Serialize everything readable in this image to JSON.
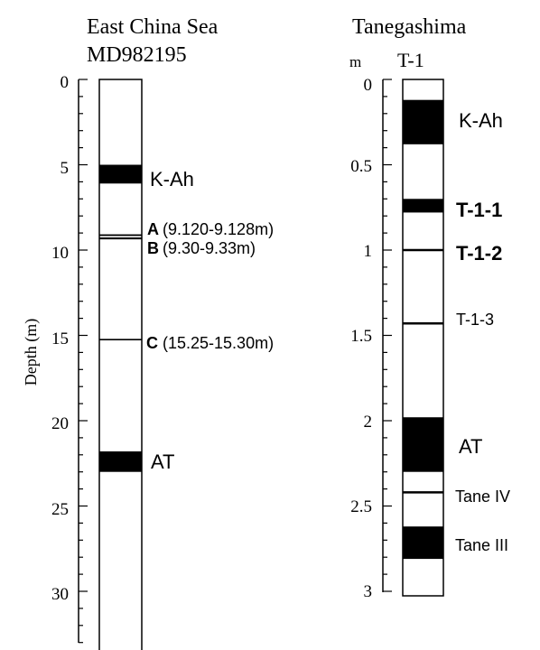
{
  "left_core": {
    "title_line1": "East China Sea",
    "title_line2": "MD982195",
    "y_axis_label": "Depth (m)",
    "ticks": [
      "0",
      "5",
      "10",
      "15",
      "20",
      "25",
      "30"
    ],
    "depth_range": [
      0,
      33
    ],
    "layers": [
      {
        "name": "K-Ah",
        "top": 5.0,
        "bottom": 6.1
      },
      {
        "name": "AT",
        "top": 21.8,
        "bottom": 23.0
      }
    ],
    "thin_lines": [
      9.12,
      9.128,
      9.3,
      9.33,
      15.25
    ],
    "labels": [
      {
        "text": "K-Ah",
        "bold": false,
        "depth": 5.7
      },
      {
        "letter": "A",
        "text": "(9.120-9.128m)",
        "depth": 8.9
      },
      {
        "letter": "B",
        "text": "(9.30-9.33m)",
        "depth": 9.75
      },
      {
        "letter": "C",
        "text": "(15.25-15.30m)",
        "depth": 15.35
      },
      {
        "text": "AT",
        "bold": false,
        "depth": 22.4
      }
    ]
  },
  "right_core": {
    "title": "Tanegashima",
    "core_name": "T-1",
    "unit": "m",
    "ticks": [
      "0",
      "0.5",
      "1",
      "1.5",
      "2",
      "2.5",
      "3"
    ],
    "depth_range": [
      0,
      3
    ],
    "layers": [
      {
        "name": "K-Ah",
        "top": 0.12,
        "bottom": 0.38
      },
      {
        "name": "T-1-1",
        "top": 0.7,
        "bottom": 0.78
      },
      {
        "name": "AT",
        "top": 1.98,
        "bottom": 2.3
      },
      {
        "name": "Tane III",
        "top": 2.62,
        "bottom": 2.81
      }
    ],
    "thin_lines": [
      1.0,
      1.43,
      2.42
    ],
    "labels": [
      {
        "text": "K-Ah",
        "bold": false,
        "depth": 0.24
      },
      {
        "text": "T-1-1",
        "bold": true,
        "depth": 0.76
      },
      {
        "text": "T-1-2",
        "bold": true,
        "depth": 1.03
      },
      {
        "text": "T-1-3",
        "bold": false,
        "depth": 1.43
      },
      {
        "text": "AT",
        "bold": false,
        "depth": 2.13
      },
      {
        "text": "Tane IV",
        "bold": false,
        "depth": 2.44
      },
      {
        "text": "Tane III",
        "bold": false,
        "depth": 2.72
      }
    ]
  }
}
